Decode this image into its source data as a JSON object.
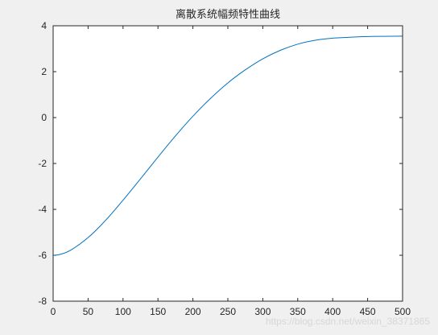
{
  "chart_data": {
    "type": "line",
    "title": "离散系统幅频特性曲线",
    "xlabel": "",
    "ylabel": "",
    "xlim": [
      0,
      500
    ],
    "ylim": [
      -8,
      4
    ],
    "xticks": [
      0,
      50,
      100,
      150,
      200,
      250,
      300,
      350,
      400,
      450,
      500
    ],
    "yticks": [
      4,
      2,
      0,
      -2,
      -4,
      -6,
      -8
    ],
    "grid": false,
    "series": [
      {
        "color": "#0072bd",
        "x": [
          0,
          10,
          25,
          50,
          75,
          100,
          125,
          150,
          175,
          200,
          225,
          250,
          275,
          300,
          325,
          350,
          375,
          400,
          425,
          450,
          475,
          500
        ],
        "y": [
          -6.0,
          -5.96,
          -5.78,
          -5.23,
          -4.48,
          -3.6,
          -2.67,
          -1.72,
          -0.8,
          0.06,
          0.83,
          1.51,
          2.08,
          2.56,
          2.93,
          3.2,
          3.37,
          3.46,
          3.5,
          3.53,
          3.54,
          3.55
        ]
      }
    ]
  },
  "watermark": "https://blog.csdn.net/weixin_38371865"
}
